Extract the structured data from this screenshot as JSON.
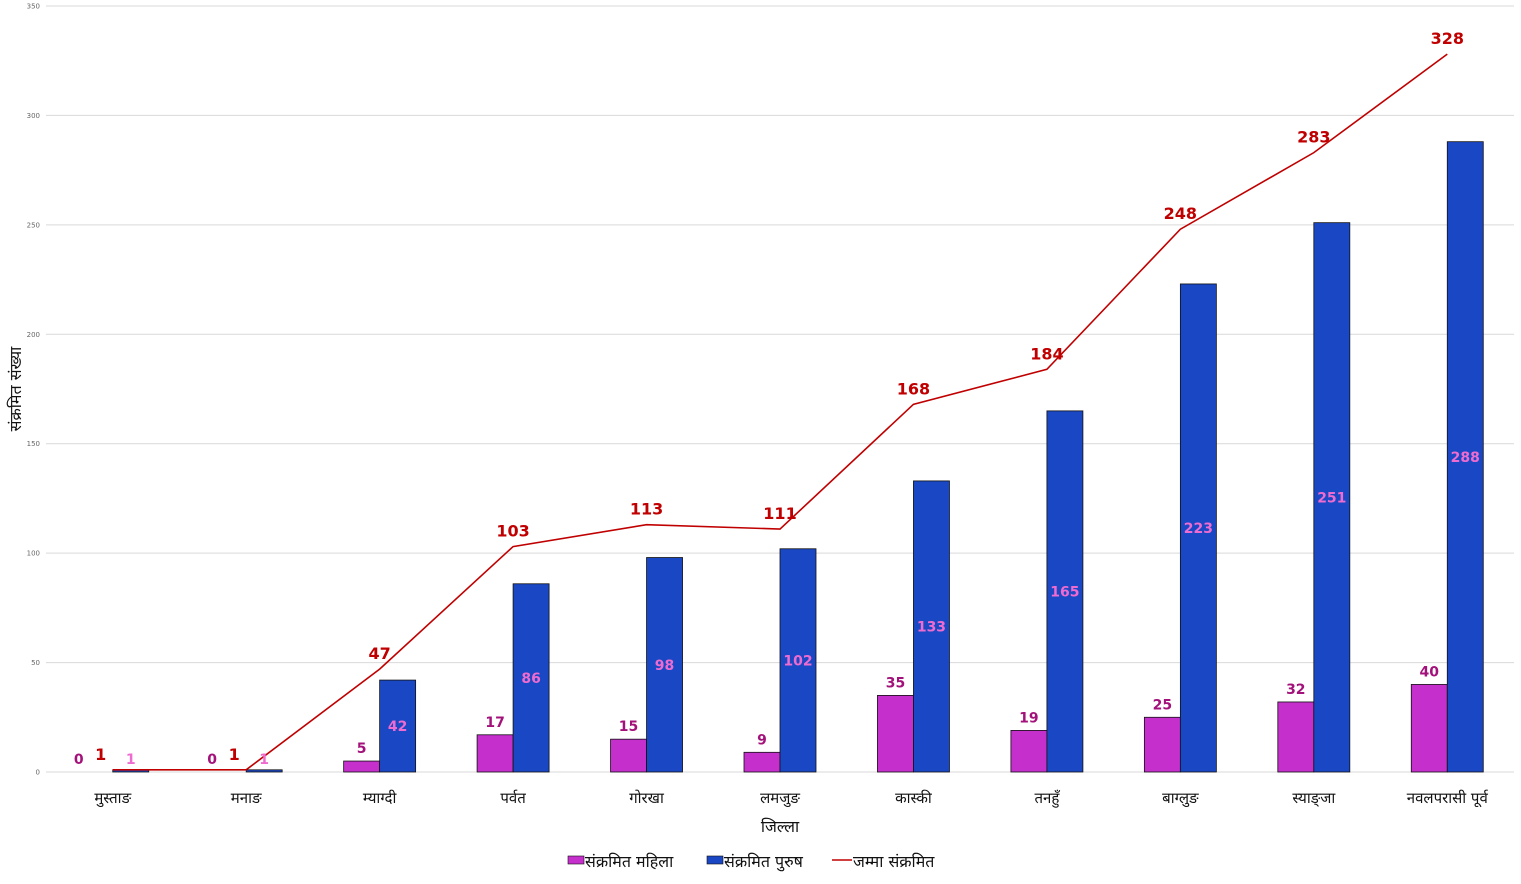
{
  "chart_data": {
    "type": "bar",
    "categories": [
      "मुस्ताङ",
      "मनाङ",
      "म्याग्दी",
      "पर्वत",
      "गोरखा",
      "लमजुङ",
      "कास्की",
      "तनहुँ",
      "बाग्लुङ",
      "स्याङ्जा",
      "नवलपरासी पूर्व"
    ],
    "series": [
      {
        "name": "संक्रमित महिला",
        "kind": "bar",
        "color": "#c52fcc",
        "values": [
          0,
          0,
          5,
          17,
          15,
          9,
          35,
          19,
          25,
          32,
          40
        ]
      },
      {
        "name": "संक्रमित पुरुष",
        "kind": "bar",
        "color": "#1a48c4",
        "values": [
          1,
          1,
          42,
          86,
          98,
          102,
          133,
          165,
          223,
          251,
          288
        ]
      },
      {
        "name": "जम्मा संक्रमित",
        "kind": "line",
        "color": "#c00000",
        "values": [
          1,
          1,
          47,
          103,
          113,
          111,
          168,
          184,
          248,
          283,
          328
        ]
      }
    ],
    "xlabel": "जिल्ला",
    "ylabel": "संक्रमित संख्या",
    "ylim": [
      0,
      350
    ],
    "yticks": [
      0,
      50,
      100,
      150,
      200,
      250,
      300,
      350
    ],
    "grid": true,
    "legend": "bottom"
  }
}
